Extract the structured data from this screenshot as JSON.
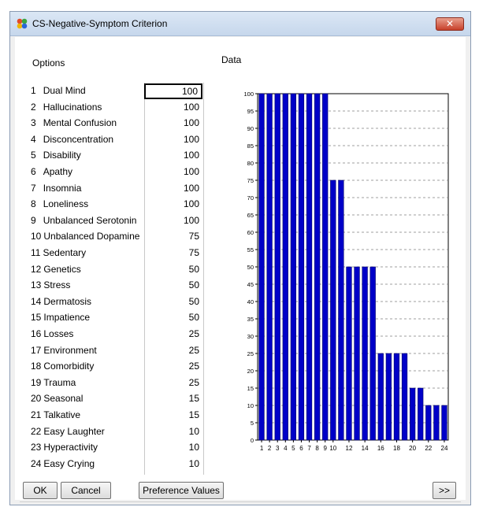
{
  "window": {
    "title": "CS-Negative-Symptom Criterion",
    "close_label": "✕"
  },
  "headings": {
    "options": "Options",
    "data": "Data"
  },
  "options": [
    {
      "index": "1",
      "name": "Dual Mind",
      "value": "100"
    },
    {
      "index": "2",
      "name": "Hallucinations",
      "value": "100"
    },
    {
      "index": "3",
      "name": "Mental Confusion",
      "value": "100"
    },
    {
      "index": "4",
      "name": "Disconcentration",
      "value": "100"
    },
    {
      "index": "5",
      "name": "Disability",
      "value": "100"
    },
    {
      "index": "6",
      "name": "Apathy",
      "value": "100"
    },
    {
      "index": "7",
      "name": "Insomnia",
      "value": "100"
    },
    {
      "index": "8",
      "name": "Loneliness",
      "value": "100"
    },
    {
      "index": "9",
      "name": "Unbalanced Serotonin",
      "value": "100"
    },
    {
      "index": "10",
      "name": "Unbalanced Dopamine",
      "value": "75"
    },
    {
      "index": "11",
      "name": "Sedentary",
      "value": "75"
    },
    {
      "index": "12",
      "name": "Genetics",
      "value": "50"
    },
    {
      "index": "13",
      "name": "Stress",
      "value": "50"
    },
    {
      "index": "14",
      "name": "Dermatosis",
      "value": "50"
    },
    {
      "index": "15",
      "name": "Impatience",
      "value": "50"
    },
    {
      "index": "16",
      "name": "Losses",
      "value": "25"
    },
    {
      "index": "17",
      "name": "Environment",
      "value": "25"
    },
    {
      "index": "18",
      "name": "Comorbidity",
      "value": "25"
    },
    {
      "index": "19",
      "name": "Trauma",
      "value": "25"
    },
    {
      "index": "20",
      "name": "Seasonal",
      "value": "15"
    },
    {
      "index": "21",
      "name": "Talkative",
      "value": "15"
    },
    {
      "index": "22",
      "name": "Easy Laughter",
      "value": "10"
    },
    {
      "index": "23",
      "name": "Hyperactivity",
      "value": "10"
    },
    {
      "index": "24",
      "name": "Easy Crying",
      "value": "10"
    }
  ],
  "buttons": {
    "ok": "OK",
    "cancel": "Cancel",
    "preference_values": "Preference Values",
    "next": ">>"
  },
  "colors": {
    "bar_fill": "#0000c8",
    "bar_stroke": "#000066"
  },
  "chart_data": {
    "type": "bar",
    "title": "",
    "xlabel": "",
    "ylabel": "",
    "categories": [
      "1",
      "2",
      "3",
      "4",
      "5",
      "6",
      "7",
      "8",
      "9",
      "10",
      "11",
      "12",
      "13",
      "14",
      "15",
      "16",
      "17",
      "18",
      "19",
      "20",
      "21",
      "22",
      "23",
      "24"
    ],
    "x_tick_labels": [
      "1",
      "2",
      "3",
      "4",
      "5",
      "6",
      "7",
      "8",
      "9",
      "10",
      "12",
      "14",
      "16",
      "18",
      "20",
      "22",
      "24"
    ],
    "values": [
      100,
      100,
      100,
      100,
      100,
      100,
      100,
      100,
      100,
      75,
      75,
      50,
      50,
      50,
      50,
      25,
      25,
      25,
      25,
      15,
      15,
      10,
      10,
      10
    ],
    "ylim": [
      0,
      100
    ],
    "y_ticks": [
      0,
      5,
      10,
      15,
      20,
      25,
      30,
      35,
      40,
      45,
      50,
      55,
      60,
      65,
      70,
      75,
      80,
      85,
      90,
      95,
      100
    ],
    "grid": "horizontal dashed"
  }
}
